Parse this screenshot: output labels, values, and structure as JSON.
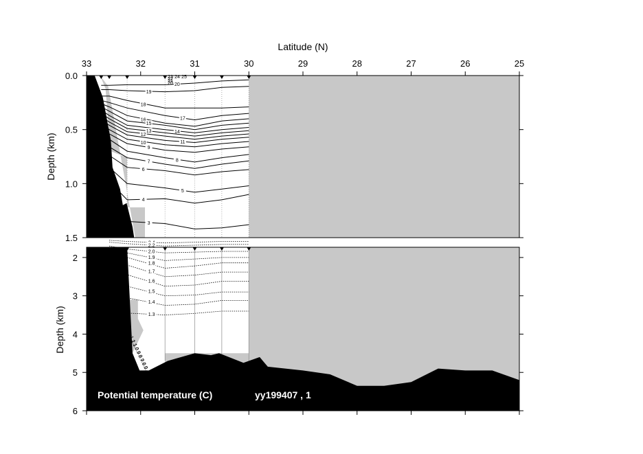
{
  "chart_data": {
    "type": "contour-section",
    "xlabel": "Latitude (N)",
    "x_ticks": [
      33,
      32,
      31,
      30,
      29,
      28,
      27,
      26,
      25
    ],
    "xlim": [
      33,
      25
    ],
    "caption": "Potential temperature (C)",
    "cruise": "yy199407 , 1",
    "colors": {
      "land": "#000000",
      "nodata": "#c8c8c8",
      "contour": "#000000"
    },
    "stations_lat": [
      32.73,
      32.58,
      32.25,
      31.55,
      31.0,
      30.5,
      30.0
    ],
    "upper": {
      "ylabel": "Depth (km)",
      "y_ticks": [
        "0.0",
        "0.5",
        "1.0",
        "1.5"
      ],
      "ylim": [
        0,
        1.5
      ],
      "contours": [
        {
          "level": 20,
          "label": "20",
          "depths": [
            0.09,
            0.09,
            0.085,
            0.085,
            0.07,
            0.05,
            0.04
          ]
        },
        {
          "level": 19,
          "label": "19",
          "depths": [
            0.13,
            0.13,
            0.14,
            0.15,
            0.14,
            0.11,
            0.1
          ]
        },
        {
          "level": 18,
          "label": "18",
          "depths": [
            0.19,
            0.19,
            0.23,
            0.3,
            0.3,
            0.3,
            0.29
          ]
        },
        {
          "level": 17,
          "label": "17",
          "depths": [
            0.23,
            0.25,
            0.3,
            0.37,
            0.41,
            0.37,
            0.35
          ]
        },
        {
          "level": 16,
          "label": "16",
          "depths": [
            0.26,
            0.29,
            0.37,
            0.44,
            0.47,
            0.42,
            0.4
          ]
        },
        {
          "level": 15,
          "label": "15",
          "depths": [
            0.29,
            0.33,
            0.42,
            0.46,
            0.5,
            0.46,
            0.44
          ]
        },
        {
          "level": 14,
          "label": "14",
          "depths": [
            0.32,
            0.37,
            0.46,
            0.5,
            0.53,
            0.5,
            0.48
          ]
        },
        {
          "level": 13,
          "label": "13",
          "depths": [
            0.35,
            0.4,
            0.49,
            0.53,
            0.56,
            0.53,
            0.51
          ]
        },
        {
          "level": 12,
          "label": "12",
          "depths": [
            0.38,
            0.43,
            0.52,
            0.56,
            0.59,
            0.56,
            0.54
          ]
        },
        {
          "level": 11,
          "label": "11",
          "depths": [
            0.41,
            0.46,
            0.55,
            0.6,
            0.62,
            0.59,
            0.57
          ]
        },
        {
          "level": 10,
          "label": "10",
          "depths": [
            0.44,
            0.5,
            0.59,
            0.64,
            0.66,
            0.63,
            0.61
          ]
        },
        {
          "level": 9,
          "label": "9",
          "depths": [
            0.48,
            0.54,
            0.63,
            0.69,
            0.71,
            0.68,
            0.66
          ]
        },
        {
          "level": 8,
          "label": "8",
          "depths": [
            0.53,
            0.59,
            0.7,
            0.76,
            0.8,
            0.76,
            0.73
          ]
        },
        {
          "level": 7,
          "label": "7",
          "depths": [
            0.58,
            0.66,
            0.76,
            0.82,
            0.86,
            0.82,
            0.79
          ]
        },
        {
          "level": 6,
          "label": "6",
          "depths": [
            0.65,
            0.74,
            0.85,
            0.88,
            0.92,
            0.89,
            0.87
          ]
        },
        {
          "level": 5,
          "label": "5",
          "depths": [
            0.75,
            0.85,
            1.0,
            1.04,
            1.08,
            1.05,
            1.02
          ]
        },
        {
          "level": 4,
          "label": "4",
          "depths": [
            0.85,
            0.98,
            1.15,
            1.14,
            1.18,
            1.15,
            1.1
          ]
        },
        {
          "level": 3,
          "label": "3",
          "depths": [
            1.05,
            1.18,
            1.35,
            1.37,
            1.42,
            1.41,
            1.38
          ]
        }
      ],
      "surface_labels": [
        "23",
        "22",
        "21",
        "20",
        "24",
        "25"
      ]
    },
    "lower": {
      "ylabel": "Depth (km)",
      "y_ticks": [
        "2",
        "3",
        "4",
        "5",
        "6"
      ],
      "ylim": [
        1.5,
        6
      ],
      "contours": [
        {
          "level": 2.4,
          "label": "2.4",
          "depths": [
            1.55,
            1.58,
            1.62,
            1.6,
            1.58,
            1.58
          ]
        },
        {
          "level": 2.2,
          "label": "2.2",
          "depths": [
            1.6,
            1.64,
            1.7,
            1.68,
            1.66,
            1.66
          ]
        },
        {
          "level": 2.0,
          "label": "2.0",
          "depths": [
            1.7,
            1.78,
            1.88,
            1.86,
            1.84,
            1.84
          ]
        },
        {
          "level": 1.9,
          "label": "1.9",
          "depths": [
            1.78,
            1.88,
            2.08,
            2.04,
            2.0,
            2.0
          ]
        },
        {
          "level": 1.8,
          "label": "1.8",
          "depths": [
            1.88,
            2.0,
            2.28,
            2.22,
            2.14,
            2.14
          ]
        },
        {
          "level": 1.7,
          "label": "1.7",
          "depths": [
            2.05,
            2.2,
            2.5,
            2.46,
            2.38,
            2.38
          ]
        },
        {
          "level": 1.6,
          "label": "1.6",
          "depths": [
            2.25,
            2.45,
            2.75,
            2.72,
            2.62,
            2.62
          ]
        },
        {
          "level": 1.5,
          "label": "1.5",
          "depths": [
            2.55,
            2.75,
            3.0,
            2.98,
            2.9,
            2.9
          ]
        },
        {
          "level": 1.4,
          "label": "1.4",
          "depths": [
            2.85,
            3.05,
            3.25,
            3.22,
            3.12,
            3.12
          ]
        },
        {
          "level": 1.3,
          "label": "1.3",
          "depths": [
            3.3,
            3.45,
            3.5,
            3.46,
            3.4,
            3.4
          ]
        }
      ],
      "slope_labels": [
        "1.2",
        "1.1",
        "1.0",
        "0.9",
        "0.8",
        "0.7",
        "0.6",
        "0.5",
        "0.4"
      ]
    }
  }
}
